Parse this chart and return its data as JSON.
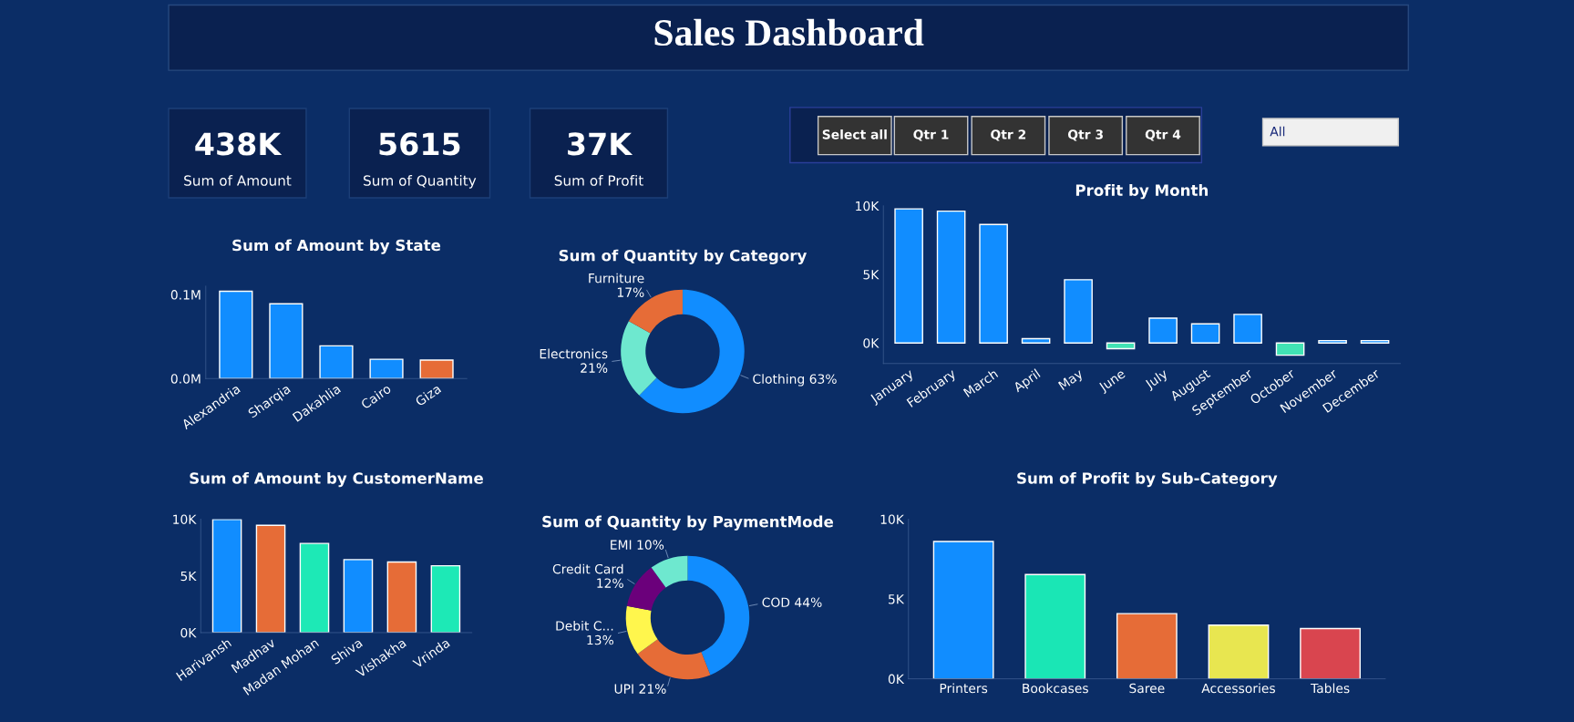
{
  "chart_data": [
    {
      "type": "other",
      "title": "Sales Dashboard"
    },
    {
      "type": "other",
      "annotations": [
        "438K",
        "Sum of Amount",
        "5615",
        "Sum of Quantity",
        "37K",
        "Sum of Profit"
      ]
    },
    {
      "type": "other",
      "annotations": [
        "Select all",
        "Qtr 1",
        "Qtr 2",
        "Qtr 3",
        "Qtr 4",
        "All"
      ]
    },
    {
      "type": "bar",
      "title": "Sum of Amount by State",
      "categories": [
        "Alexandria",
        "Sharqia",
        "Dakahlia",
        "Cairo",
        "Giza"
      ],
      "values": [
        0.104,
        0.089,
        0.039,
        0.023,
        0.022
      ],
      "colors": [
        "#118dff",
        "#118dff",
        "#118dff",
        "#118dff",
        "#e66c37"
      ],
      "ylim": [
        0,
        0.11
      ],
      "yticks": [
        {
          "value": 0,
          "label": "0.0M"
        },
        {
          "value": 0.1,
          "label": "0.1M"
        }
      ],
      "grid": false,
      "legend": false
    },
    {
      "type": "donut",
      "title": "Sum of Quantity by Category",
      "categories": [
        "Clothing",
        "Electronics",
        "Furniture"
      ],
      "values": [
        63,
        21,
        17
      ],
      "value_labels": [
        "63%",
        "21%",
        "17%"
      ],
      "colors": [
        "#118dff",
        "#6ee8cf",
        "#e66c37"
      ],
      "legend": false
    },
    {
      "type": "bar",
      "title": "Profit by Month",
      "categories": [
        "January",
        "February",
        "March",
        "April",
        "May",
        "June",
        "July",
        "August",
        "September",
        "October",
        "November",
        "December"
      ],
      "values": [
        9780,
        9610,
        8640,
        310,
        4610,
        -420,
        1810,
        1390,
        2080,
        -890,
        170,
        170
      ],
      "colors": [
        "#118dff",
        "#118dff",
        "#118dff",
        "#118dff",
        "#118dff",
        "#41e2b4",
        "#118dff",
        "#118dff",
        "#118dff",
        "#41e2b4",
        "#118dff",
        "#118dff"
      ],
      "ylim": [
        -1500,
        10000
      ],
      "yticks": [
        {
          "value": 0,
          "label": "0K"
        },
        {
          "value": 5000,
          "label": "5K"
        },
        {
          "value": 10000,
          "label": "10K"
        }
      ],
      "grid": false,
      "legend": false
    },
    {
      "type": "bar",
      "title": "Sum of Amount by CustomerName",
      "categories": [
        "Harivansh",
        "Madhav",
        "Madan Mohan",
        "Shiva",
        "Vishakha",
        "Vrinda"
      ],
      "values": [
        9970,
        9460,
        7860,
        6430,
        6220,
        5890
      ],
      "colors": [
        "#118dff",
        "#e66c37",
        "#1de9b6",
        "#118dff",
        "#e66c37",
        "#1de9b6"
      ],
      "ylim": [
        0,
        10000
      ],
      "yticks": [
        {
          "value": 0,
          "label": "0K"
        },
        {
          "value": 5000,
          "label": "5K"
        },
        {
          "value": 10000,
          "label": "10K"
        }
      ],
      "grid": false,
      "legend": false
    },
    {
      "type": "donut",
      "title": "Sum of Quantity by PaymentMode",
      "categories": [
        "COD",
        "UPI",
        "Debit C...",
        "Credit Card",
        "EMI"
      ],
      "values": [
        44,
        21,
        13,
        12,
        10
      ],
      "value_labels": [
        "44%",
        "21%",
        "13%",
        "12%",
        "10%"
      ],
      "colors": [
        "#118dff",
        "#e66c37",
        "#fff64d",
        "#6b007b",
        "#6ee8cf"
      ],
      "legend": false
    },
    {
      "type": "bar",
      "title": "Sum of Profit by Sub-Category",
      "categories": [
        "Printers",
        "Bookcases",
        "Saree",
        "Accessories",
        "Tables"
      ],
      "values": [
        8600,
        6530,
        4080,
        3360,
        3150
      ],
      "colors": [
        "#118dff",
        "#1ae6b5",
        "#e66c37",
        "#e8e650",
        "#d9454f"
      ],
      "ylim": [
        0,
        10000
      ],
      "yticks": [
        {
          "value": 0,
          "label": "0K"
        },
        {
          "value": 5000,
          "label": "5K"
        },
        {
          "value": 10000,
          "label": "10K"
        }
      ],
      "grid": false,
      "legend": false
    }
  ]
}
